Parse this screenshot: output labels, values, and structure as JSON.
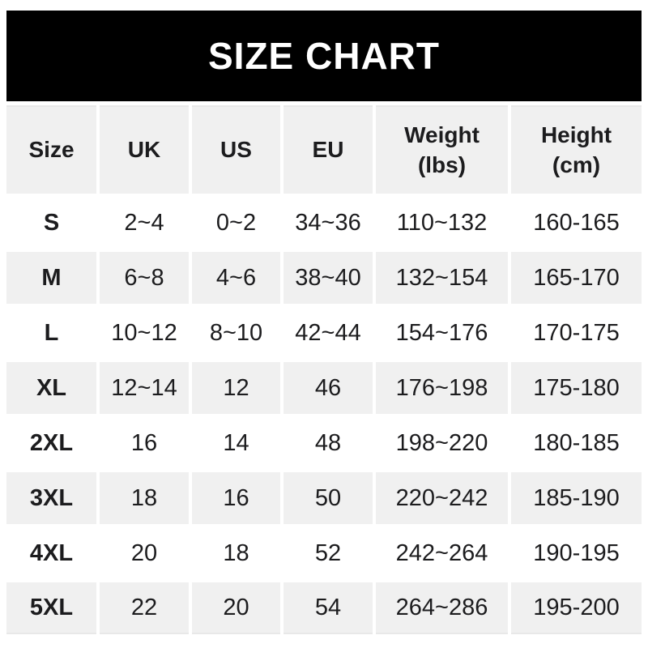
{
  "banner": {
    "title": "SIZE CHART"
  },
  "colors": {
    "banner_bg": "#000000",
    "banner_text": "#ffffff",
    "shaded_cell_bg": "#f0f0f0",
    "unshaded_cell_bg": "#ffffff",
    "text": "#1c1c1e"
  },
  "chart_data": {
    "type": "table",
    "title": "SIZE CHART",
    "columns": [
      "Size",
      "UK",
      "US",
      "EU",
      "Weight\n(lbs)",
      "Height\n(cm)"
    ],
    "rows": [
      [
        "S",
        "2~4",
        "0~2",
        "34~36",
        "110~132",
        "160-165"
      ],
      [
        "M",
        "6~8",
        "4~6",
        "38~40",
        "132~154",
        "165-170"
      ],
      [
        "L",
        "10~12",
        "8~10",
        "42~44",
        "154~176",
        "170-175"
      ],
      [
        "XL",
        "12~14",
        "12",
        "46",
        "176~198",
        "175-180"
      ],
      [
        "2XL",
        "16",
        "14",
        "48",
        "198~220",
        "180-185"
      ],
      [
        "3XL",
        "18",
        "16",
        "50",
        "220~242",
        "185-190"
      ],
      [
        "4XL",
        "20",
        "18",
        "52",
        "242~264",
        "190-195"
      ],
      [
        "5XL",
        "22",
        "20",
        "54",
        "264~286",
        "195-200"
      ]
    ],
    "layout": {
      "row_shading": "alternate",
      "shaded_rows": [
        "header",
        "M",
        "XL",
        "3XL",
        "5XL"
      ],
      "range_separator_weight": "~",
      "range_separator_height": "-"
    }
  }
}
